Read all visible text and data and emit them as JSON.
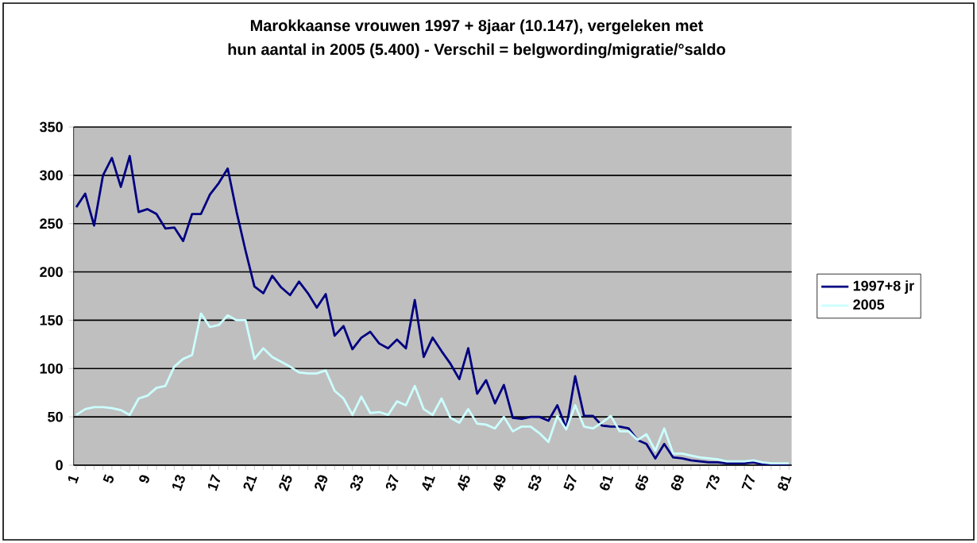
{
  "chart_data": {
    "type": "line",
    "title": "Marokkaanse vrouwen 1997 + 8jaar (10.147), vergeleken met",
    "subtitle": "hun aantal in 2005 (5.400)  - Verschil = belgwording/migratie/°saldo",
    "categories": [
      "1",
      null,
      null,
      null,
      "5",
      null,
      null,
      null,
      "9",
      null,
      null,
      null,
      "13",
      null,
      null,
      null,
      "17",
      null,
      null,
      null,
      "21",
      null,
      null,
      null,
      "25",
      null,
      null,
      null,
      "29",
      null,
      null,
      null,
      "33",
      null,
      null,
      null,
      "37",
      null,
      null,
      null,
      "41",
      null,
      null,
      null,
      "45",
      null,
      null,
      null,
      "49",
      null,
      null,
      null,
      "53",
      null,
      null,
      null,
      "57",
      null,
      null,
      null,
      "61",
      null,
      null,
      null,
      "65",
      null,
      null,
      null,
      "69",
      null,
      null,
      null,
      "73",
      null,
      null,
      null,
      "77",
      null,
      null,
      null,
      "81"
    ],
    "series": [
      {
        "name": "1997+8 jr",
        "color": "#000080",
        "values": [
          267,
          281,
          248,
          300,
          318,
          288,
          320,
          262,
          265,
          260,
          245,
          246,
          232,
          260,
          260,
          280,
          292,
          307,
          262,
          222,
          185,
          178,
          196,
          184,
          176,
          190,
          178,
          163,
          177,
          134,
          144,
          120,
          132,
          138,
          126,
          121,
          130,
          121,
          171,
          112,
          132,
          118,
          105,
          89,
          121,
          74,
          88,
          64,
          83,
          49,
          48,
          50,
          50,
          46,
          62,
          38,
          92,
          51,
          51,
          41,
          40,
          40,
          38,
          26,
          22,
          7,
          22,
          8,
          7,
          5,
          4,
          3,
          3,
          2,
          2,
          2,
          3,
          1,
          1,
          1,
          1
        ]
      },
      {
        "name": "2005",
        "color": "#ccffff",
        "values": [
          52,
          58,
          60,
          60,
          59,
          57,
          52,
          69,
          72,
          80,
          82,
          102,
          110,
          114,
          157,
          143,
          145,
          155,
          150,
          150,
          110,
          121,
          112,
          107,
          102,
          96,
          95,
          95,
          98,
          77,
          69,
          52,
          71,
          54,
          55,
          52,
          66,
          62,
          82,
          58,
          52,
          69,
          49,
          44,
          58,
          43,
          42,
          38,
          50,
          35,
          40,
          40,
          33,
          24,
          51,
          37,
          62,
          40,
          38,
          44,
          51,
          35,
          35,
          26,
          32,
          15,
          38,
          12,
          12,
          10,
          8,
          7,
          6,
          4,
          4,
          4,
          5,
          3,
          2,
          2,
          2
        ]
      }
    ],
    "ylim": [
      0,
      350
    ],
    "yticks": [
      0,
      50,
      100,
      150,
      200,
      250,
      300,
      350
    ],
    "grid": "y",
    "legend": "right",
    "marker": "none",
    "line_style": "solid"
  }
}
